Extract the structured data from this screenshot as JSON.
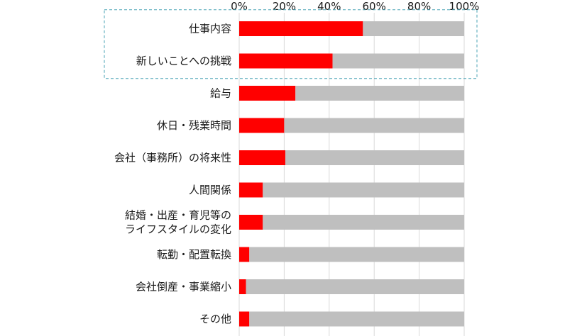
{
  "chart_data": {
    "type": "bar",
    "orientation": "horizontal",
    "stacked": true,
    "percent_scale": true,
    "xlim": [
      0,
      100
    ],
    "x_ticks": [
      "0%",
      "20%",
      "40%",
      "60%",
      "80%",
      "100%"
    ],
    "x_axis_position": "top",
    "grid": true,
    "legend": "none",
    "categories": [
      [
        "仕事内容"
      ],
      [
        "新しいことへの挑戦"
      ],
      [
        "給与"
      ],
      [
        "休日・残業時間"
      ],
      [
        "会社（事務所）の将来性"
      ],
      [
        "人間関係"
      ],
      [
        "結婚・出産・育児等の",
        "ライフスタイルの変化"
      ],
      [
        "転勤・配置転換"
      ],
      [
        "会社倒産・事業縮小"
      ],
      [
        "その他"
      ]
    ],
    "series": [
      {
        "values": [
          55,
          41.5,
          25,
          20,
          20.5,
          10.5,
          10.5,
          4.5,
          3,
          4.5
        ],
        "color": "#ff0000"
      },
      {
        "values": [
          45,
          58.5,
          75,
          80,
          79.5,
          89.5,
          89.5,
          95.5,
          97,
          95.5
        ],
        "color": "#bfbfbf"
      }
    ],
    "highlight_box": {
      "categories": [
        0,
        1
      ],
      "style": "dashed",
      "color": "#4aa3b5"
    }
  }
}
